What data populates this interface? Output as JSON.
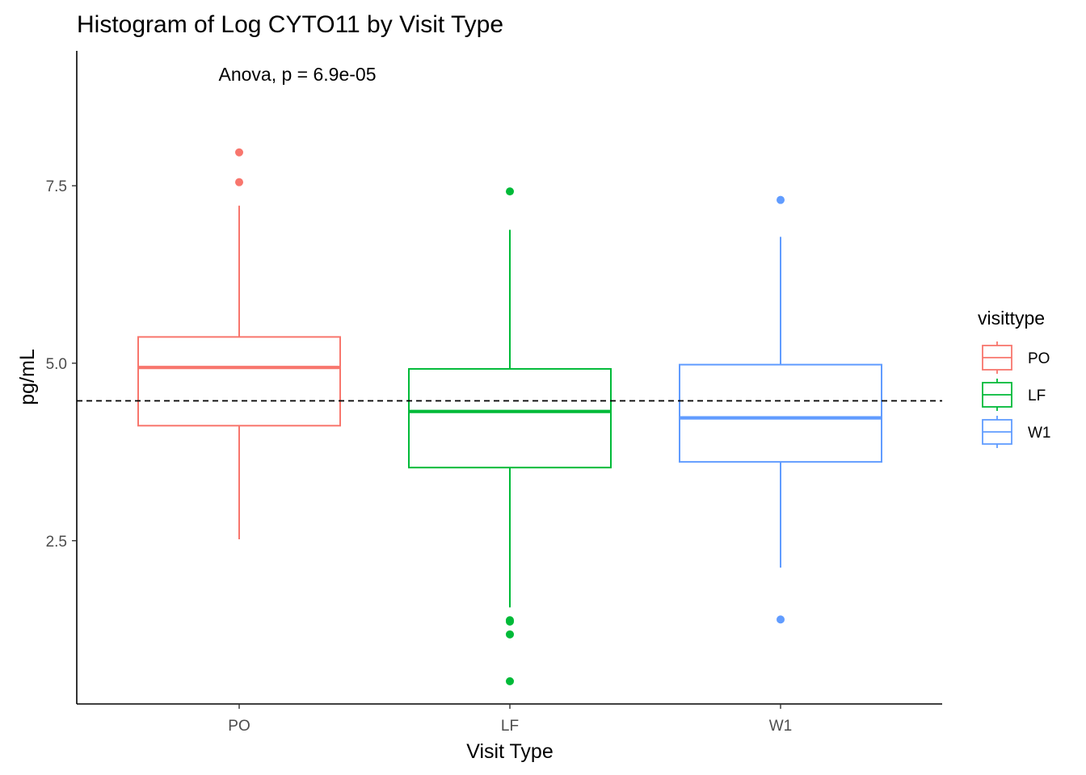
{
  "chart_data": {
    "type": "boxplot",
    "title": "Histogram of Log CYTO11 by Visit Type",
    "annotation": "Anova, p = 6.9e-05",
    "xlabel": "Visit Type",
    "ylabel": "pg/mL",
    "categories": [
      "PO",
      "LF",
      "W1"
    ],
    "ylim": [
      0.2,
      9.4
    ],
    "yticks": [
      2.5,
      5.0,
      7.5
    ],
    "ytick_labels": [
      "2.5",
      "5.0",
      "7.5"
    ],
    "reference_line": {
      "y": 4.47,
      "style": "dashed"
    },
    "legend": {
      "title": "visittype",
      "position": "right"
    },
    "series": [
      {
        "name": "PO",
        "color": "#F8766D",
        "whisker_low": 2.52,
        "q1": 4.12,
        "median": 4.94,
        "q3": 5.37,
        "whisker_high": 7.22,
        "outliers": [
          7.55,
          7.97
        ]
      },
      {
        "name": "LF",
        "color": "#00BA38",
        "whisker_low": 1.56,
        "q1": 3.53,
        "median": 4.32,
        "q3": 4.92,
        "whisker_high": 6.88,
        "outliers": [
          7.42,
          1.38,
          1.36,
          1.18,
          0.52
        ]
      },
      {
        "name": "W1",
        "color": "#619CFF",
        "whisker_low": 2.12,
        "q1": 3.61,
        "median": 4.23,
        "q3": 4.98,
        "whisker_high": 6.78,
        "outliers": [
          7.3,
          1.39
        ]
      }
    ]
  }
}
